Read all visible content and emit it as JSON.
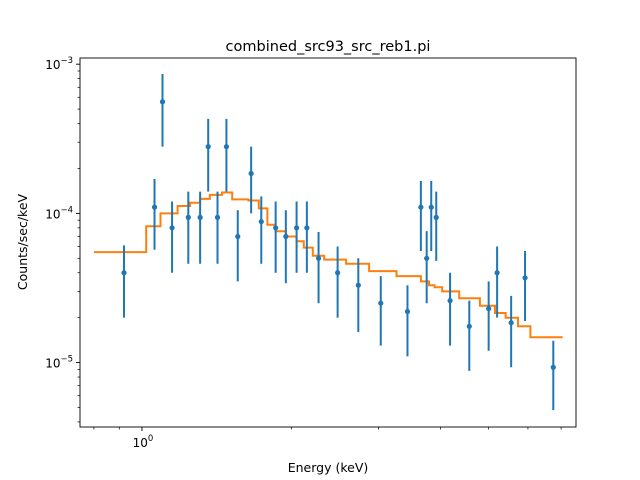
{
  "chart_data": {
    "type": "scatter",
    "title": "combined_src93_src_reb1.pi",
    "xlabel": "Energy (keV)",
    "ylabel": "Counts/sec/keV",
    "xscale": "log",
    "yscale": "log",
    "xlim": [
      0.75,
      7.5
    ],
    "ylim": [
      3.7e-06,
      0.0011
    ],
    "grid": false,
    "x_ticks": [
      {
        "value": 1.0,
        "label": "10^0"
      }
    ],
    "x_minor_ticks": [
      0.8,
      0.9,
      2,
      3,
      4,
      5,
      6,
      7
    ],
    "y_ticks": [
      {
        "value": 1e-05,
        "label": "10^-5"
      },
      {
        "value": 0.0001,
        "label": "10^-4"
      },
      {
        "value": 0.001,
        "label": "10^-3"
      }
    ],
    "colors": {
      "data": "#1f77b4",
      "model": "#ff7f0e"
    },
    "series": [
      {
        "type": "errorbar",
        "points": [
          {
            "x": 0.92,
            "y": 4e-05,
            "lo": 2e-05,
            "hi": 6.1e-05
          },
          {
            "x": 1.06,
            "y": 0.00011,
            "lo": 5.7e-05,
            "hi": 0.00017
          },
          {
            "x": 1.1,
            "y": 0.00056,
            "lo": 0.00028,
            "hi": 0.00086
          },
          {
            "x": 1.15,
            "y": 8e-05,
            "lo": 4e-05,
            "hi": 0.00012
          },
          {
            "x": 1.24,
            "y": 9.4e-05,
            "lo": 4.6e-05,
            "hi": 0.00014
          },
          {
            "x": 1.31,
            "y": 9.4e-05,
            "lo": 4.6e-05,
            "hi": 0.00014
          },
          {
            "x": 1.36,
            "y": 0.00028,
            "lo": 0.00014,
            "hi": 0.00043
          },
          {
            "x": 1.42,
            "y": 9.4e-05,
            "lo": 4.6e-05,
            "hi": 0.00014
          },
          {
            "x": 1.48,
            "y": 0.00028,
            "lo": 0.00014,
            "hi": 0.00043
          },
          {
            "x": 1.56,
            "y": 7e-05,
            "lo": 3.5e-05,
            "hi": 0.000105
          },
          {
            "x": 1.66,
            "y": 0.000185,
            "lo": 0.0001,
            "hi": 0.00028
          },
          {
            "x": 1.74,
            "y": 8.8e-05,
            "lo": 4.6e-05,
            "hi": 0.00013
          },
          {
            "x": 1.86,
            "y": 8e-05,
            "lo": 4e-05,
            "hi": 0.00012
          },
          {
            "x": 1.95,
            "y": 7e-05,
            "lo": 3.4e-05,
            "hi": 0.000105
          },
          {
            "x": 2.05,
            "y": 8e-05,
            "lo": 4e-05,
            "hi": 0.00012
          },
          {
            "x": 2.15,
            "y": 8e-05,
            "lo": 4e-05,
            "hi": 0.00012
          },
          {
            "x": 2.27,
            "y": 5e-05,
            "lo": 2.5e-05,
            "hi": 7.5e-05
          },
          {
            "x": 2.48,
            "y": 4e-05,
            "lo": 2e-05,
            "hi": 6e-05
          },
          {
            "x": 2.73,
            "y": 3.3e-05,
            "lo": 1.6e-05,
            "hi": 5e-05
          },
          {
            "x": 3.03,
            "y": 2.5e-05,
            "lo": 1.3e-05,
            "hi": 3.8e-05
          },
          {
            "x": 3.43,
            "y": 2.2e-05,
            "lo": 1.1e-05,
            "hi": 3.3e-05
          },
          {
            "x": 3.65,
            "y": 0.00011,
            "lo": 5.6e-05,
            "hi": 0.000165
          },
          {
            "x": 3.75,
            "y": 5e-05,
            "lo": 2.5e-05,
            "hi": 7.6e-05
          },
          {
            "x": 3.83,
            "y": 0.00011,
            "lo": 5.6e-05,
            "hi": 0.000165
          },
          {
            "x": 3.92,
            "y": 9.4e-05,
            "lo": 4.8e-05,
            "hi": 0.00014
          },
          {
            "x": 4.18,
            "y": 2.6e-05,
            "lo": 1.3e-05,
            "hi": 4e-05
          },
          {
            "x": 4.57,
            "y": 1.75e-05,
            "lo": 8.8e-06,
            "hi": 2.6e-05
          },
          {
            "x": 5.0,
            "y": 2.3e-05,
            "lo": 1.2e-05,
            "hi": 3.5e-05
          },
          {
            "x": 5.2,
            "y": 4e-05,
            "lo": 2e-05,
            "hi": 6e-05
          },
          {
            "x": 5.55,
            "y": 1.85e-05,
            "lo": 9.3e-06,
            "hi": 2.8e-05
          },
          {
            "x": 5.92,
            "y": 3.7e-05,
            "lo": 1.9e-05,
            "hi": 5.6e-05
          },
          {
            "x": 6.75,
            "y": 9.3e-06,
            "lo": 4.8e-06,
            "hi": 1.4e-05
          }
        ]
      },
      {
        "type": "step",
        "edges": [
          0.8,
          1.02,
          1.09,
          1.18,
          1.25,
          1.31,
          1.37,
          1.45,
          1.52,
          1.64,
          1.72,
          1.79,
          1.86,
          1.95,
          2.05,
          2.12,
          2.21,
          2.33,
          2.58,
          2.87,
          3.26,
          3.65,
          3.79,
          3.89,
          4.03,
          4.36,
          4.8,
          5.15,
          5.41,
          5.73,
          6.07,
          7.05
        ],
        "values": [
          5.5e-05,
          8.2e-05,
          0.0001,
          0.000112,
          0.000118,
          0.000125,
          0.000133,
          0.000138,
          0.000124,
          0.000122,
          0.000108,
          8.4e-05,
          7.6e-05,
          7e-05,
          6.5e-05,
          5.9e-05,
          5.2e-05,
          4.9e-05,
          4.6e-05,
          4.1e-05,
          3.8e-05,
          3.5e-05,
          3.3e-05,
          3.2e-05,
          3e-05,
          2.7e-05,
          2.4e-05,
          2.15e-05,
          2e-05,
          1.75e-05,
          1.48e-05
        ]
      }
    ]
  }
}
